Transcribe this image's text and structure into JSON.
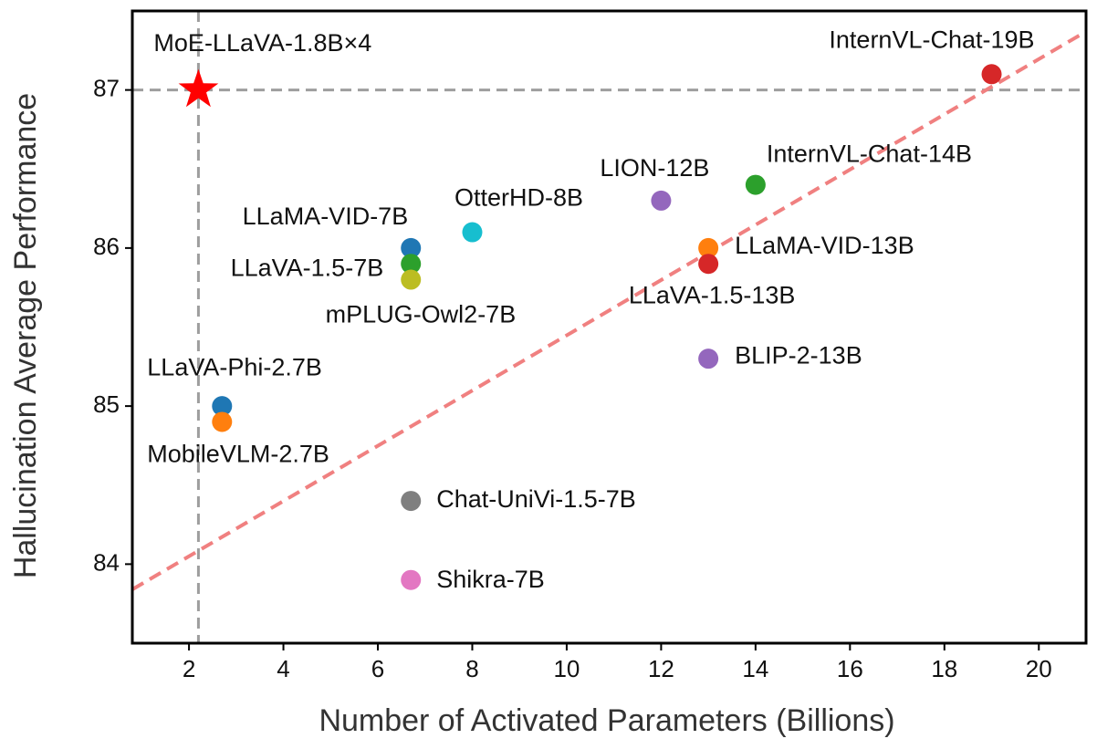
{
  "chart_data": {
    "type": "scatter",
    "x_label": "Number of Activated Parameters (Billions)",
    "y_label": "Hallucination Average Performance",
    "xlim": [
      0.8,
      21
    ],
    "ylim": [
      83.5,
      87.5
    ],
    "xticks": [
      2,
      4,
      6,
      8,
      10,
      12,
      14,
      16,
      18,
      20
    ],
    "yticks": [
      84,
      85,
      86,
      87
    ],
    "reference_lines": {
      "x": 2.2,
      "y": 87,
      "color": "#9e9e9e"
    },
    "trend_line": {
      "x": [
        0.8,
        21
      ],
      "y": [
        83.84,
        87.37
      ],
      "color": "#f08080"
    },
    "points": [
      {
        "name": "MoE-LLaVA-1.8B×4",
        "x": 2.2,
        "y": 87.0,
        "color": "#ff0000",
        "marker": "star"
      },
      {
        "name": "InternVL-Chat-19B",
        "x": 19,
        "y": 87.1,
        "color": "#d62728",
        "marker": "circle"
      },
      {
        "name": "InternVL-Chat-14B",
        "x": 14,
        "y": 86.4,
        "color": "#2ca02c",
        "marker": "circle"
      },
      {
        "name": "LION-12B",
        "x": 12,
        "y": 86.3,
        "color": "#9467bd",
        "marker": "circle"
      },
      {
        "name": "OtterHD-8B",
        "x": 8,
        "y": 86.1,
        "color": "#17becf",
        "marker": "circle"
      },
      {
        "name": "LLaMA-VID-7B",
        "x": 6.7,
        "y": 86.0,
        "color": "#1f77b4",
        "marker": "circle"
      },
      {
        "name": "LLaVA-1.5-7B",
        "x": 6.7,
        "y": 85.9,
        "color": "#2ca02c",
        "marker": "circle"
      },
      {
        "name": "mPLUG-Owl2-7B",
        "x": 6.7,
        "y": 85.8,
        "color": "#bcbd22",
        "marker": "circle"
      },
      {
        "name": "LLaMA-VID-13B",
        "x": 13,
        "y": 86.0,
        "color": "#ff7f0e",
        "marker": "circle"
      },
      {
        "name": "LLaVA-1.5-13B",
        "x": 13,
        "y": 85.9,
        "color": "#d62728",
        "marker": "circle"
      },
      {
        "name": "BLIP-2-13B",
        "x": 13,
        "y": 85.3,
        "color": "#9467bd",
        "marker": "circle"
      },
      {
        "name": "LLaVA-Phi-2.7B",
        "x": 2.7,
        "y": 85.0,
        "color": "#1f77b4",
        "marker": "circle"
      },
      {
        "name": "MobileVLM-2.7B",
        "x": 2.7,
        "y": 84.9,
        "color": "#ff7f0e",
        "marker": "circle"
      },
      {
        "name": "Chat-UniVi-1.5-7B",
        "x": 6.7,
        "y": 84.4,
        "color": "#7f7f7f",
        "marker": "circle"
      },
      {
        "name": "Shikra-7B",
        "x": 6.7,
        "y": 83.9,
        "color": "#e377c2",
        "marker": "circle"
      }
    ]
  }
}
